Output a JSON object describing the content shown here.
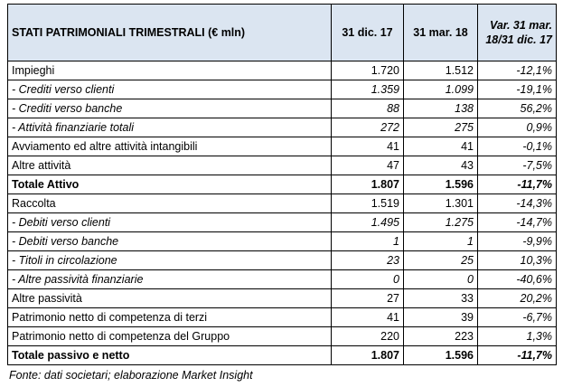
{
  "table": {
    "header": [
      "STATI PATRIMONIALI TRIMESTRALI (€ mln)",
      "31 dic. 17",
      "31 mar. 18",
      "Var. 31 mar. 18/31 dic. 17"
    ],
    "rows": [
      [
        "Impieghi",
        "1.720",
        "1.512",
        "-12,1%"
      ],
      [
        "- Crediti verso clienti",
        "1.359",
        "1.099",
        "-19,1%"
      ],
      [
        "- Crediti verso banche",
        "88",
        "138",
        "56,2%"
      ],
      [
        "- Attività finanziarie totali",
        "272",
        "275",
        "0,9%"
      ],
      [
        "Avviamento ed altre attività intangibili",
        "41",
        "41",
        "-0,1%"
      ],
      [
        "Altre attività",
        "47",
        "43",
        "-7,5%"
      ],
      [
        "Totale Attivo",
        "1.807",
        "1.596",
        "-11,7%"
      ],
      [
        "Raccolta",
        "1.519",
        "1.301",
        "-14,3%"
      ],
      [
        "- Debiti verso clienti",
        "1.495",
        "1.275",
        "-14,7%"
      ],
      [
        "- Debiti verso banche",
        "1",
        "1",
        "-9,9%"
      ],
      [
        "- Titoli in circolazione",
        "23",
        "25",
        "10,3%"
      ],
      [
        "- Altre passività finanziarie",
        "0",
        "0",
        "-40,6%"
      ],
      [
        "Altre passività",
        "27",
        "33",
        "20,2%"
      ],
      [
        "Patrimonio netto di competenza di terzi",
        "41",
        "39",
        "-6,7%"
      ],
      [
        "Patrimonio netto di competenza del Gruppo",
        "220",
        "223",
        "1,3%"
      ],
      [
        "Totale passivo e netto",
        "1.807",
        "1.596",
        "-11,7%"
      ]
    ]
  },
  "footnote": "Fonte: dati societari; elaborazione Market Insight"
}
